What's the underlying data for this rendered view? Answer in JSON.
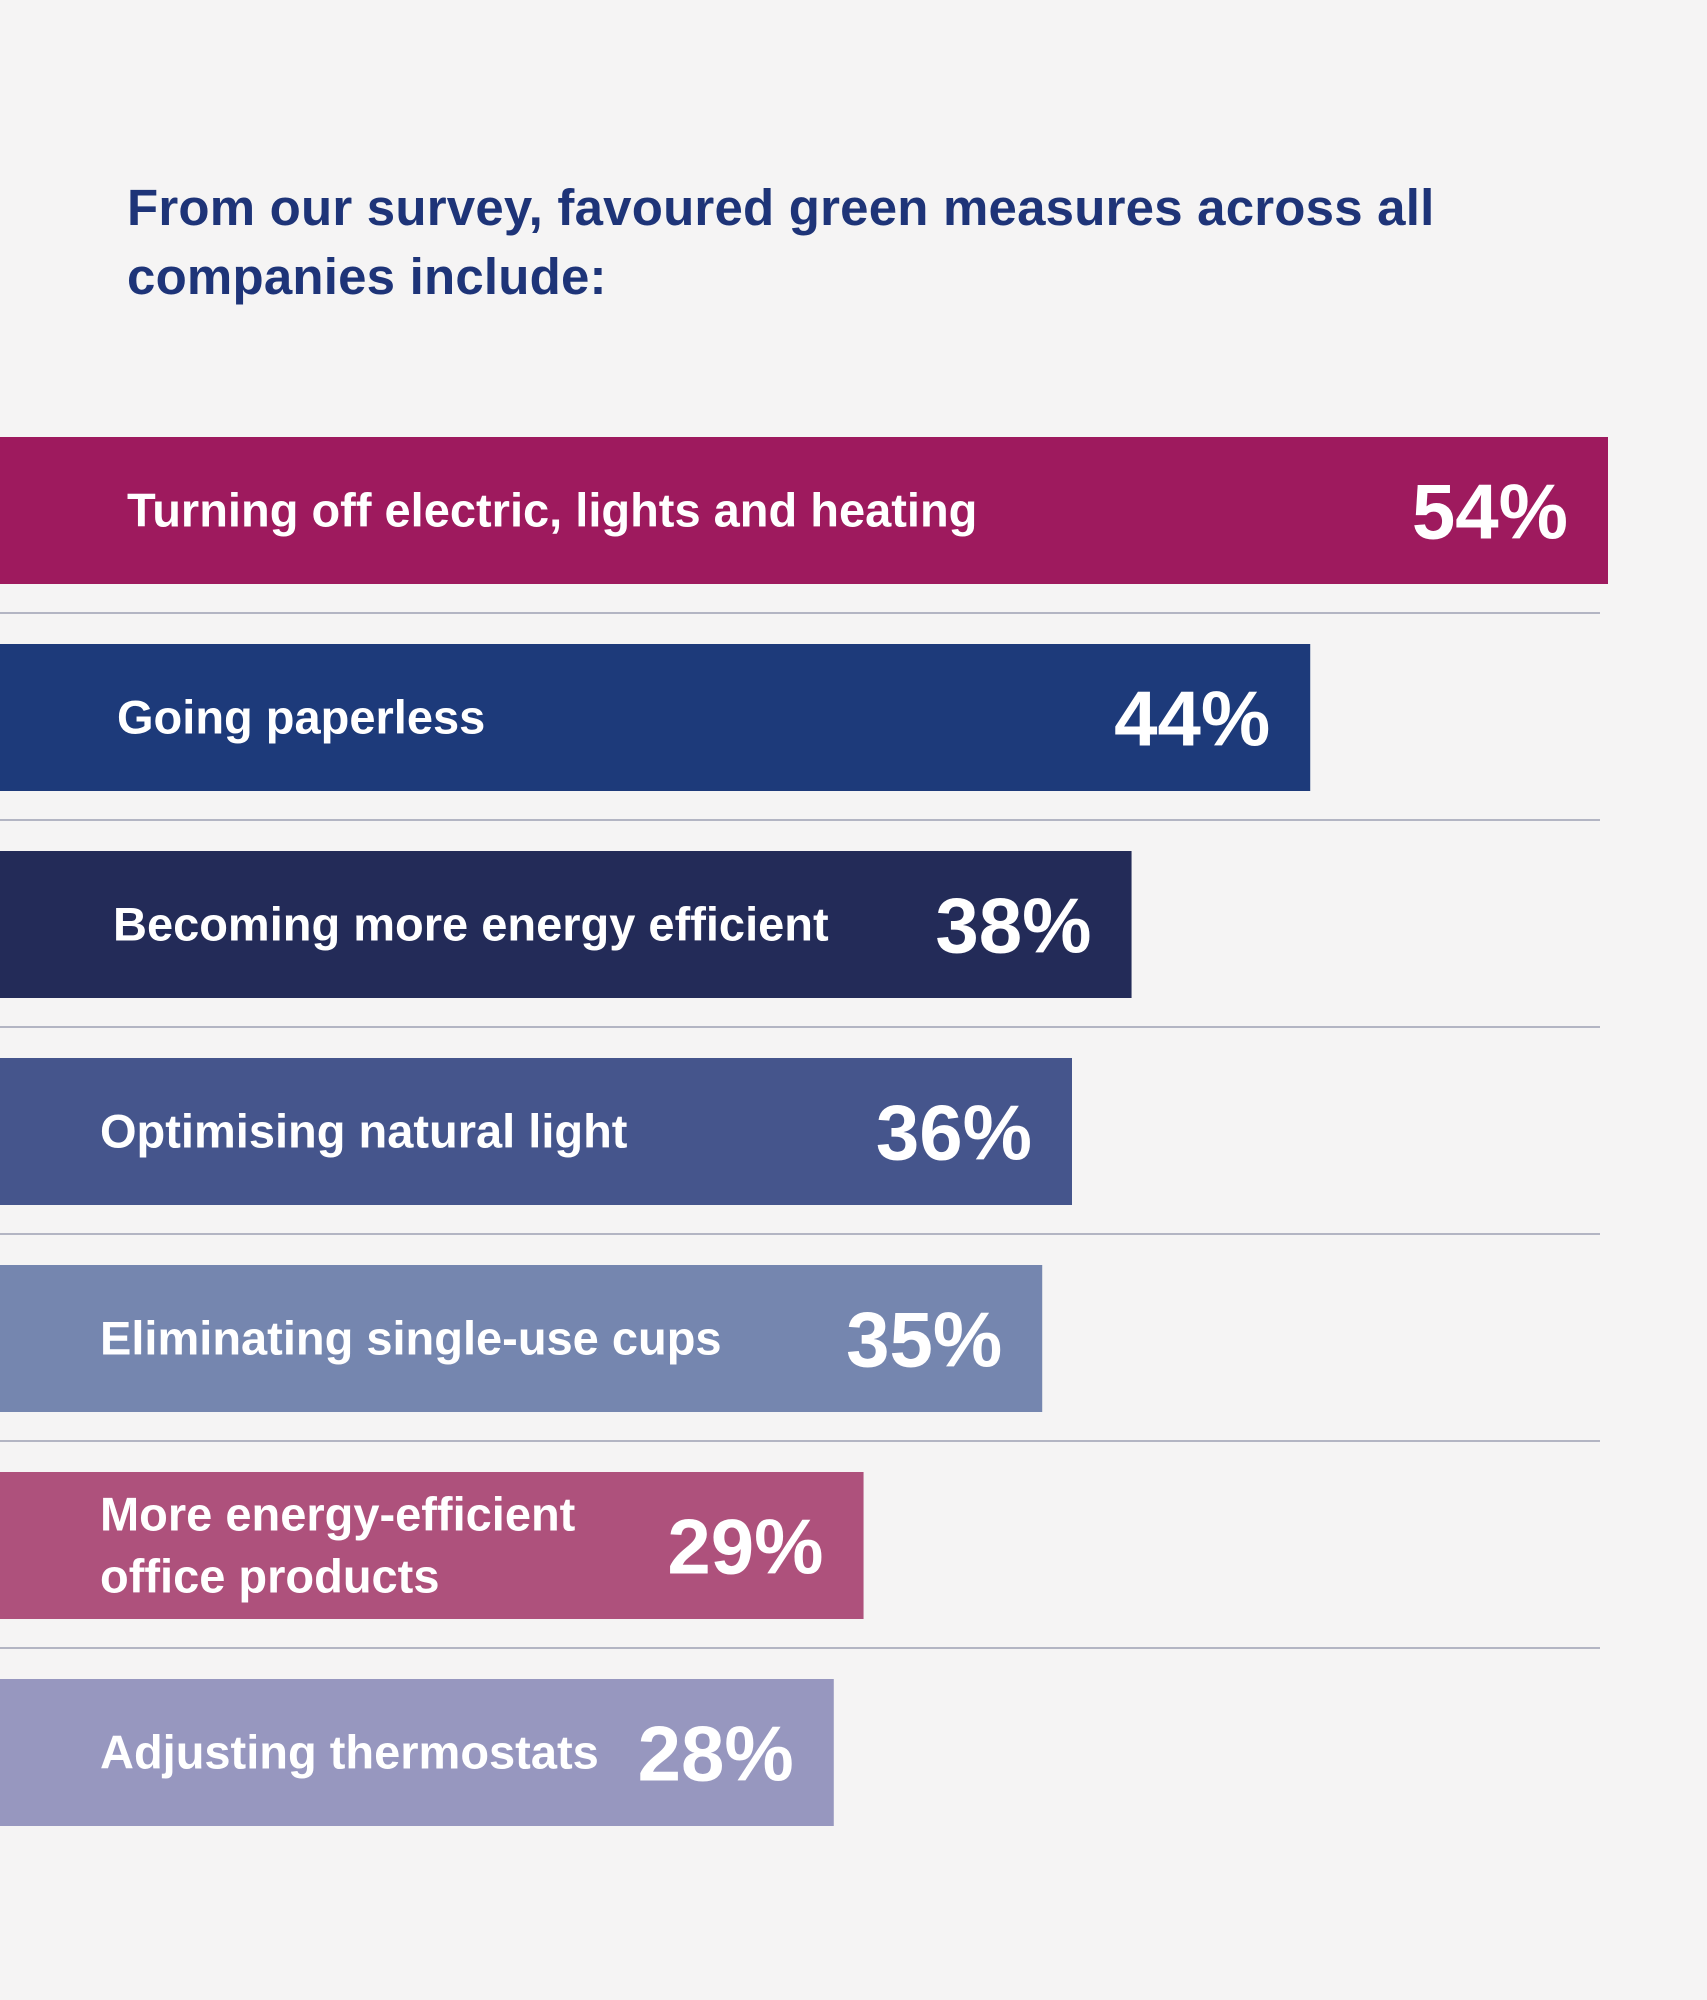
{
  "chart_data": {
    "type": "bar",
    "orientation": "horizontal",
    "title": "From our survey, favoured green measures across all companies include:",
    "categories": [
      [
        "Turning off electric, lights and heating"
      ],
      [
        "Going paperless"
      ],
      [
        "Becoming more energy efficient"
      ],
      [
        "Optimising natural light"
      ],
      [
        "Eliminating single-use cups"
      ],
      [
        "More energy-efficient",
        "office products"
      ],
      [
        "Adjusting thermostats"
      ]
    ],
    "values": [
      54,
      44,
      38,
      36,
      35,
      29,
      28
    ],
    "value_labels": [
      "54%",
      "44%",
      "38%",
      "36%",
      "35%",
      "29%",
      "28%"
    ],
    "unit": "%",
    "colors": [
      "#9e1a5e",
      "#1d3a7a",
      "#232b58",
      "#45558c",
      "#7586af",
      "#ae517c",
      "#9797bf"
    ],
    "separator_color": "#b3b5c3",
    "grid": false,
    "legend": "none"
  }
}
